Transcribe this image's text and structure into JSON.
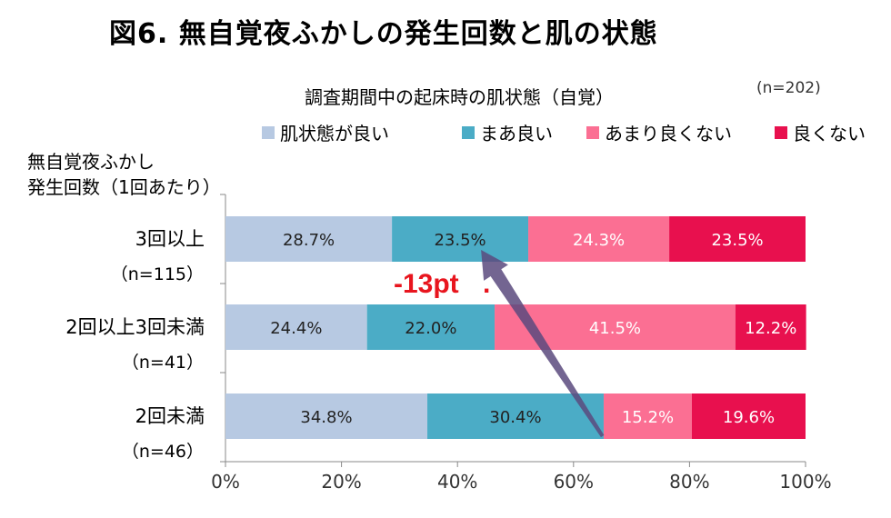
{
  "title": "図6. 無自覚夜ふかしの発生回数と肌の状態",
  "chart_data": {
    "type": "bar",
    "orientation": "horizontal",
    "stacked": true,
    "subtitle": "調査期間中の起床時の肌状態（自覚）",
    "n_note": "(n=202)",
    "y_axis_title": [
      "無自覚夜ふかし",
      "発生回数（1回あたり）"
    ],
    "categories": [
      {
        "label": "3回以上",
        "n": "（n=115）"
      },
      {
        "label": "2回以上3回未満",
        "n": "（n=41）"
      },
      {
        "label": "2回未満",
        "n": "（n=46）"
      }
    ],
    "series": [
      {
        "name": "肌状態が良い",
        "color": "#b7c9e2",
        "label_color": "#222222",
        "values": [
          28.7,
          24.4,
          34.8
        ]
      },
      {
        "name": "まあ良い",
        "color": "#4bacc6",
        "label_color": "#222222",
        "values": [
          23.5,
          22.0,
          30.4
        ]
      },
      {
        "name": "あまり良くない",
        "color": "#fb6f93",
        "label_color": "#ffffff",
        "values": [
          24.3,
          41.5,
          15.2
        ]
      },
      {
        "name": "良くない",
        "color": "#e8104e",
        "label_color": "#ffffff",
        "values": [
          23.5,
          12.2,
          19.6
        ]
      }
    ],
    "value_labels": [
      [
        "28.7%",
        "23.5%",
        "24.3%",
        "23.5%"
      ],
      [
        "24.4%",
        "22.0%",
        "41.5%",
        "12.2%"
      ],
      [
        "34.8%",
        "30.4%",
        "15.2%",
        "19.6%"
      ]
    ],
    "x_ticks": [
      "0%",
      "20%",
      "40%",
      "60%",
      "80%",
      "100%"
    ],
    "xlim": [
      0,
      100
    ],
    "legend_position": "top",
    "annotation": {
      "text": "-13pt",
      "dot": ".",
      "color": "#e8151e",
      "arrow_color": "#5a4a7e",
      "arrow_from": {
        "category_index": 2,
        "value": 65
      },
      "arrow_to": {
        "category_index": 0,
        "value": 45
      }
    }
  }
}
